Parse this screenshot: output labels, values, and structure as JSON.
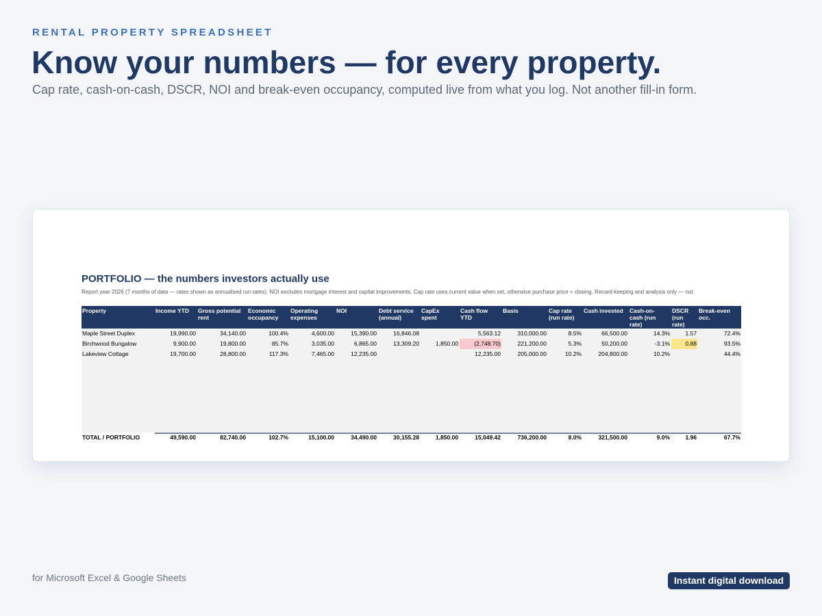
{
  "page": {
    "eyebrow": "RENTAL PROPERTY SPREADSHEET",
    "headline": "Know your numbers — for every property.",
    "subhead": "Cap rate, cash-on-cash, DSCR, NOI and break-even occupancy, computed live from what you log. Not another fill-in form.",
    "footer_note": "for Microsoft Excel & Google Sheets",
    "cta_label": "Instant digital download"
  },
  "sheet": {
    "title": "PORTFOLIO — the numbers investors actually use",
    "note": "Report year 2026 (7 months of data — rates shown as annualised run rates). NOI excludes mortgage interest and capital improvements. Cap rate uses current value when set, otherwise purchase price + closing. Record-keeping and analysis only — not",
    "columns": [
      "Property",
      "Income YTD",
      "Gross potential rent",
      "Economic occupancy",
      "Operating expenses",
      "NOI",
      "Debt service (annual)",
      "CapEx spent",
      "Cash flow YTD",
      "Basis",
      "Cap rate (run rate)",
      "Cash invested",
      "Cash-on-cash (run rate)",
      "DSCR (run rate)",
      "Break-even occ."
    ],
    "rows": [
      [
        "Maple Street Duplex",
        "19,990.00",
        "34,140.00",
        "100.4%",
        "4,600.00",
        "15,390.00",
        "16,846.08",
        "",
        "5,563.12",
        "310,000.00",
        "8.5%",
        "66,500.00",
        "14.3%",
        "1.57",
        "72.4%"
      ],
      [
        "Birchwood Bungalow",
        "9,900.00",
        "19,800.00",
        "85.7%",
        "3,035.00",
        "6,865.00",
        "13,309.20",
        "1,850.00",
        "(2,748.70)",
        "221,200.00",
        "5.3%",
        "50,200.00",
        "-3.1%",
        "0.88",
        "93.5%"
      ],
      [
        "Lakeview Cottage",
        "19,700.00",
        "28,800.00",
        "117.3%",
        "7,465.00",
        "12,235.00",
        "",
        "",
        "12,235.00",
        "205,000.00",
        "10.2%",
        "204,800.00",
        "10.2%",
        "",
        "44.4%"
      ]
    ],
    "total": [
      "TOTAL / PORTFOLIO",
      "49,590.00",
      "82,740.00",
      "102.7%",
      "15,100.00",
      "34,490.00",
      "30,155.28",
      "1,850.00",
      "15,049.42",
      "736,200.00",
      "8.0%",
      "321,500.00",
      "9.0%",
      "1.96",
      "67.7%"
    ],
    "highlight_colors": {
      "negative": "#f8c8cc",
      "warning": "#fde68a"
    }
  }
}
